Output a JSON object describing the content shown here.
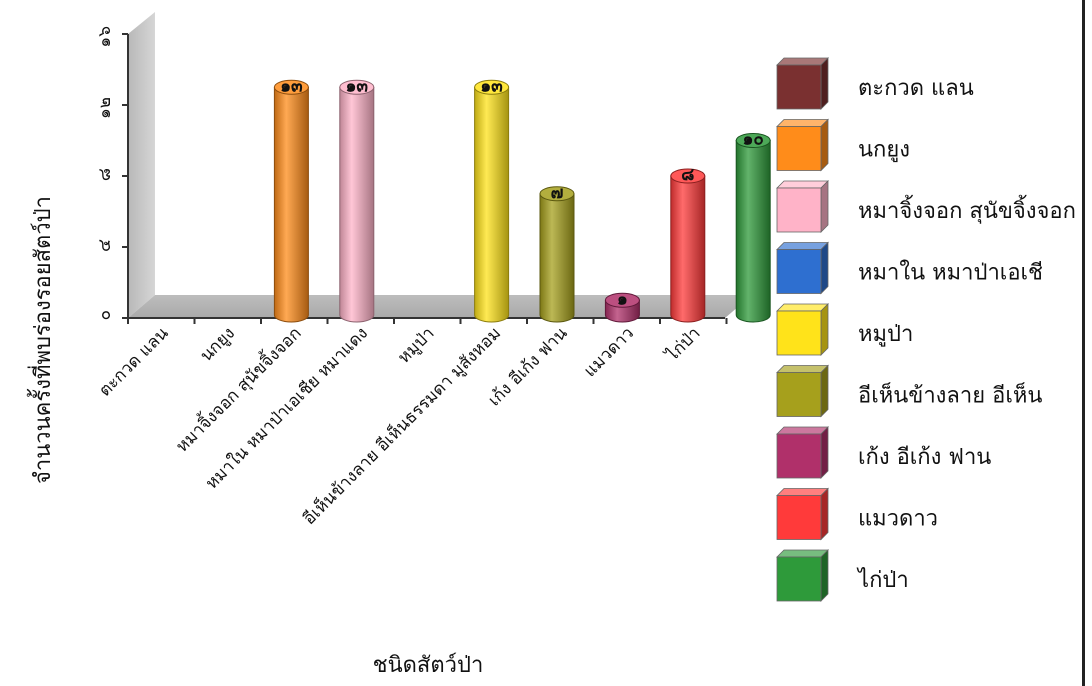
{
  "chart_data": {
    "type": "bar",
    "style": "3d-cylinder",
    "categories": [
      "ตะกวด แลน",
      "นกยูง",
      "หมาจิ้งจอก สุนัขจิ้งจอก",
      "หมาใน หมาป่าเอเชีย หมาแดง",
      "หมูป่า",
      "อีเห็นข้างลาย อีเห็นธรรมดา มูสังหอม",
      "เก้ง อีเก้ง ฟาน",
      "แมวดาว",
      "ไก่ป่า"
    ],
    "values": [
      0,
      13,
      13,
      0,
      13,
      7,
      1,
      8,
      10
    ],
    "value_labels": [
      "",
      "๑๓",
      "๑๓",
      "",
      "๑๓",
      "๗",
      "๑",
      "๘",
      "๑๐"
    ],
    "colors": [
      "#7a3030",
      "#ff8c1a",
      "#ffb3c8",
      "#2e6fd0",
      "#ffe31a",
      "#a6a01c",
      "#b0306a",
      "#ff3a3a",
      "#2e9a3a"
    ],
    "ylim": [
      0,
      16
    ],
    "yticks": [
      0,
      4,
      8,
      12,
      16
    ],
    "ytick_labels": [
      "๐",
      "๔",
      "๘",
      "๑๒",
      "๑๖"
    ],
    "xlabel": "ชนิดสัตว์ป่า",
    "ylabel": "จำนวนครั้งที่พบร่องรอยสัตว์ป่า",
    "legend": {
      "position": "right",
      "entries": [
        "ตะกวด แลน",
        "นกยูง",
        "หมาจิ้งจอก สุนัขจิ้งจอก",
        "หมาใน หมาป่าเอเชี",
        "หมูป่า",
        "อีเห็นข้างลาย อีเห็น",
        "เก้ง อีเก้ง ฟาน",
        "แมวดาว",
        "ไก่ป่า"
      ]
    },
    "grid": false
  }
}
